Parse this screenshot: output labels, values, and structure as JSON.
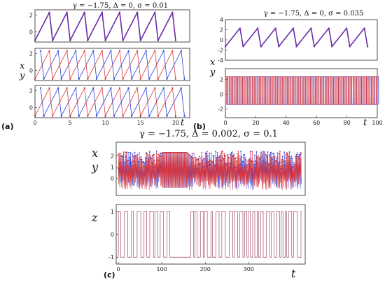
{
  "colors": {
    "x": "#2b3fe0",
    "y": "#e03434",
    "z": "#8a2040",
    "combined": "#6a2ca8"
  },
  "panel_labels": {
    "a": "(a)",
    "b": "(b)",
    "c": "(c)"
  },
  "axis_symbols": {
    "x": "x",
    "y": "y",
    "z": "z",
    "t": "t"
  },
  "chart_data": [
    {
      "type": "line",
      "panel": "a",
      "title": "γ = −1.75, Δ = 0, σ = 0.01",
      "xlabel": "t",
      "xlim": [
        0,
        22
      ],
      "xticks": [
        0,
        5,
        10,
        15,
        20
      ],
      "subplots": [
        {
          "ylim": [
            -1.2,
            2.6
          ],
          "yticks": [
            0,
            2
          ],
          "series": [
            {
              "variable": "x+y",
              "kind": "sawtooth",
              "period": 2.5,
              "phase": 0,
              "min": -1,
              "max": 2.3
            }
          ]
        },
        {
          "ylabel": [
            "x",
            "y"
          ],
          "ylim": [
            -1.2,
            2.6
          ],
          "yticks": [
            0,
            2
          ],
          "series": [
            {
              "variable": "x",
              "kind": "sawtooth",
              "period": 2.5,
              "phase": 0.5,
              "min": -1,
              "max": 2.3
            },
            {
              "variable": "y",
              "kind": "sawtooth",
              "period": 2.5,
              "phase": 0,
              "min": -1,
              "max": 2.3
            }
          ]
        },
        {
          "ylim": [
            -1.2,
            2.6
          ],
          "yticks": [
            0,
            2
          ],
          "series": [
            {
              "variable": "x",
              "kind": "sawtooth",
              "period": 2.5,
              "phase": 0.5,
              "min": -1,
              "max": 2.3
            },
            {
              "variable": "y",
              "kind": "sawtooth",
              "period": 2.5,
              "phase": 0,
              "min": -1,
              "max": 2.3
            }
          ]
        }
      ]
    },
    {
      "type": "line",
      "panel": "b",
      "title": "γ = −1.75, Δ = 0, σ = 0.035",
      "xlabel": "t",
      "xlim": [
        0,
        100
      ],
      "xticks": [
        0,
        20,
        40,
        60,
        80,
        100
      ],
      "subplots": [
        {
          "ylim": [
            -4,
            4
          ],
          "yticks": [
            -4,
            -2,
            0,
            2,
            4
          ],
          "series": [
            {
              "variable": "x+y",
              "kind": "sawtooth",
              "period": 11.7,
              "phase": 0,
              "min": -1.3,
              "max": 2.3
            }
          ]
        },
        {
          "ylabel": [
            "x",
            "y"
          ],
          "ylim": [
            -3.2,
            3.5
          ],
          "yticks": [
            -2,
            0,
            2
          ],
          "series": [
            {
              "variable": "x",
              "kind": "square",
              "period": 1.6,
              "phase": 0.5,
              "min": -1.4,
              "max": 2.4
            },
            {
              "variable": "y",
              "kind": "square",
              "period": 1.6,
              "phase": 0,
              "min": -1.4,
              "max": 2.4
            }
          ]
        }
      ]
    },
    {
      "type": "line",
      "panel": "c",
      "title": "γ = −1.75, Δ = 0.002, σ = 0.1",
      "xlabel": "t",
      "xlim": [
        -5,
        430
      ],
      "xticks": [
        0,
        100,
        200,
        300
      ],
      "subplots": [
        {
          "ylabel": [
            "x",
            "y"
          ],
          "ylim": [
            -1.5,
            3.2
          ],
          "yticks": [
            0,
            1,
            2
          ],
          "series": [
            {
              "variable": "x",
              "kind": "noisy",
              "period": 4,
              "min": -1,
              "max": 2.4
            },
            {
              "variable": "y",
              "kind": "noisy",
              "period": 4,
              "min": -1,
              "max": 2.4
            }
          ]
        },
        {
          "ylabel": [
            "z"
          ],
          "ylim": [
            -1.3,
            1.3
          ],
          "yticks": [
            -1,
            0,
            1
          ],
          "series": [
            {
              "variable": "z",
              "kind": "telegraph",
              "values": [
                -1,
                1
              ]
            }
          ]
        }
      ]
    }
  ]
}
